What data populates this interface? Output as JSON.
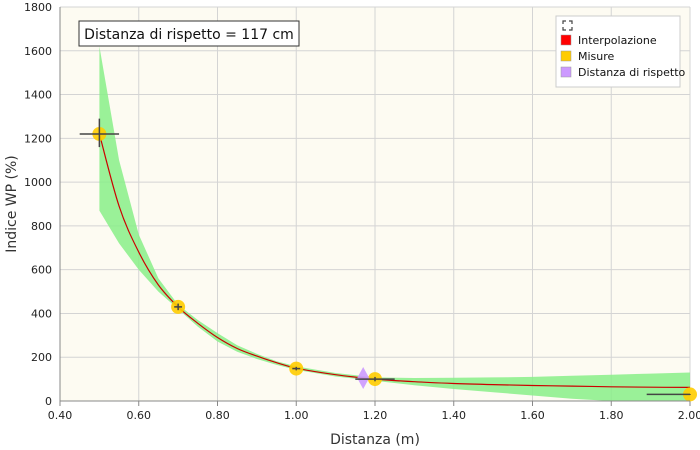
{
  "chart_data": {
    "type": "scatter",
    "xlabel": "Distanza (m)",
    "ylabel": "Indice WP (%)",
    "xlim": [
      0.4,
      2.0
    ],
    "ylim": [
      0,
      1800
    ],
    "x_ticks": [
      "0.40",
      "0.60",
      "0.80",
      "1.00",
      "1.20",
      "1.40",
      "1.60",
      "1.80",
      "2.00"
    ],
    "y_ticks": [
      "0",
      "200",
      "400",
      "600",
      "800",
      "1000",
      "1200",
      "1400",
      "1600",
      "1800"
    ],
    "grid": true,
    "background": "#fdfbf2",
    "annotation": "Distanza di rispetto = 117 cm",
    "legend": {
      "position": "top-right",
      "items": [
        {
          "label": "Interpolazione",
          "color": "#ff0000"
        },
        {
          "label": "Misure",
          "color": "#ffcc00"
        },
        {
          "label": "Distanza di rispetto",
          "color": "#cc99ff"
        }
      ]
    },
    "series": [
      {
        "name": "Interpolazione",
        "type": "line",
        "color": "#cc0000",
        "x": [
          0.5,
          0.55,
          0.6,
          0.65,
          0.7,
          0.75,
          0.8,
          0.85,
          0.9,
          0.95,
          1.0,
          1.1,
          1.2,
          1.3,
          1.4,
          1.5,
          1.6,
          1.7,
          1.8,
          1.9,
          2.0
        ],
        "y": [
          1220,
          890,
          680,
          530,
          430,
          355,
          290,
          240,
          205,
          175,
          150,
          120,
          100,
          88,
          80,
          75,
          71,
          68,
          65,
          63,
          62
        ]
      },
      {
        "name": "Misure",
        "type": "scatter",
        "color": "#ffcc00",
        "x": [
          0.5,
          0.7,
          1.0,
          1.2,
          2.0
        ],
        "y": [
          1220,
          430,
          148,
          100,
          30
        ]
      },
      {
        "name": "Distanza di rispetto",
        "type": "scatter",
        "color": "#cc99ff",
        "x": [
          1.17
        ],
        "y": [
          105
        ]
      }
    ],
    "confidence_band": {
      "color": "#88ee88",
      "x": [
        0.5,
        0.55,
        0.6,
        0.65,
        0.7,
        0.75,
        0.8,
        0.85,
        0.9,
        0.95,
        1.0,
        1.1,
        1.2,
        1.3,
        1.4,
        1.5,
        1.6,
        1.7,
        1.8,
        1.9,
        2.0
      ],
      "upper": [
        1620,
        1100,
        760,
        560,
        440,
        370,
        310,
        255,
        215,
        182,
        158,
        128,
        108,
        105,
        106,
        108,
        110,
        115,
        120,
        125,
        130
      ],
      "lower": [
        870,
        720,
        600,
        500,
        420,
        340,
        272,
        225,
        192,
        165,
        142,
        112,
        92,
        72,
        55,
        40,
        25,
        10,
        0,
        0,
        0
      ]
    },
    "error_bars": [
      {
        "x": 0.5,
        "y": 1220,
        "xlow": 0.45,
        "xhigh": 0.55,
        "ylow": 1160,
        "yhigh": 1290
      },
      {
        "x": 0.7,
        "y": 430,
        "xlow": 0.69,
        "xhigh": 0.71,
        "ylow": 415,
        "yhigh": 445
      },
      {
        "x": 1.0,
        "y": 148,
        "xlow": 0.99,
        "xhigh": 1.01,
        "ylow": 140,
        "yhigh": 156
      },
      {
        "x": 1.2,
        "y": 100,
        "xlow": 1.15,
        "xhigh": 1.25,
        "ylow": 90,
        "yhigh": 110
      },
      {
        "x": 2.0,
        "y": 30,
        "xlow": 1.89,
        "xhigh": 2.0,
        "ylow": 28,
        "yhigh": 32
      }
    ]
  }
}
